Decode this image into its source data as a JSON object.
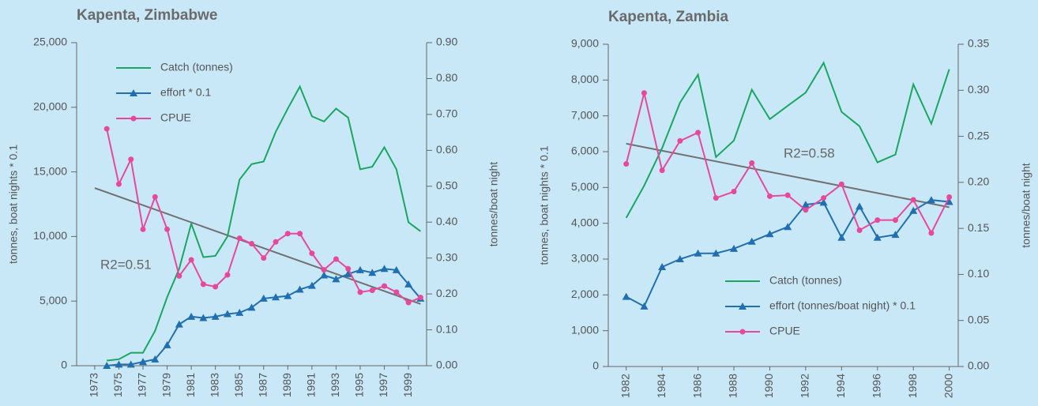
{
  "chart_data": [
    {
      "type": "line",
      "title": "Kapenta, Zimbabwe",
      "y_label": "tonnes, boat nights * 0.1",
      "y2_label": "tonnes/boat night",
      "annotation": "R2=0.51",
      "legend": "upper left",
      "x": [
        1974,
        1975,
        1976,
        1977,
        1978,
        1979,
        1980,
        1981,
        1982,
        1983,
        1984,
        1985,
        1986,
        1987,
        1988,
        1989,
        1990,
        1991,
        1992,
        1993,
        1994,
        1995,
        1996,
        1997,
        1998,
        1999,
        2000
      ],
      "xlim": [
        1971.5,
        2000.5
      ],
      "xticks": [
        1973,
        1975,
        1977,
        1979,
        1981,
        1983,
        1985,
        1987,
        1989,
        1991,
        1993,
        1995,
        1997,
        1999
      ],
      "ylim": [
        0,
        25000
      ],
      "yticks": [
        0,
        {
          "value": 5000,
          "label": "5,000"
        },
        {
          "value": 10000,
          "label": "10,000"
        },
        {
          "value": 15000,
          "label": "15,000"
        },
        {
          "value": 20000,
          "label": "20,000"
        },
        {
          "value": 25000,
          "label": "25,000"
        }
      ],
      "y2lim": [
        0,
        0.9
      ],
      "y2ticks": [
        {
          "value": 0,
          "label": "0.00"
        },
        {
          "value": 0.1,
          "label": "0.10"
        },
        {
          "value": 0.2,
          "label": "0.20"
        },
        {
          "value": 0.3,
          "label": "0.30"
        },
        {
          "value": 0.4,
          "label": "0.40"
        },
        {
          "value": 0.5,
          "label": "0.50"
        },
        {
          "value": 0.6,
          "label": "0.60"
        },
        {
          "value": 0.7,
          "label": "0.70"
        },
        {
          "value": 0.8,
          "label": "0.80"
        },
        {
          "value": 0.9,
          "label": "0.90"
        }
      ],
      "series": [
        {
          "name": "Catch (tonnes)",
          "color": "#1aa661",
          "marker": "none",
          "values": [
            400,
            500,
            1000,
            1000,
            2700,
            5300,
            7500,
            11000,
            8400,
            8500,
            10000,
            14400,
            15600,
            15800,
            18100,
            19900,
            21600,
            19300,
            18900,
            19900,
            19200,
            15200,
            15400,
            16900,
            15200,
            11100,
            10400
          ]
        },
        {
          "name": "effort * 0.1",
          "color": "#1f6fb2",
          "marker": "triangle",
          "values": [
            0,
            100,
            100,
            300,
            500,
            1600,
            3200,
            3800,
            3700,
            3800,
            4000,
            4100,
            4500,
            5200,
            5300,
            5400,
            5900,
            6200,
            7000,
            6700,
            7100,
            7400,
            7200,
            7500,
            7400,
            6300,
            5200
          ]
        },
        {
          "name": "CPUE",
          "color": "#e8489a",
          "marker": "circle",
          "axis": "y2",
          "values": [
            0.66,
            0.506,
            0.575,
            0.38,
            0.47,
            0.38,
            0.25,
            0.295,
            0.227,
            0.22,
            0.253,
            0.355,
            0.34,
            0.3,
            0.345,
            0.368,
            0.368,
            0.313,
            0.267,
            0.297,
            0.27,
            0.205,
            0.21,
            0.222,
            0.205,
            0.176,
            0.19
          ]
        }
      ],
      "trend": {
        "color": "#707070",
        "axis": "y2",
        "x": [
          1973,
          2000
        ],
        "values": [
          0.495,
          0.172
        ]
      }
    },
    {
      "type": "line",
      "title": "Kapenta, Zambia",
      "y_label": "tonnes, boat nights * 0.1",
      "y2_label": "tonnes/boat night",
      "annotation": "R2=0.58",
      "legend": "lower right",
      "x": [
        1982,
        1983,
        1984,
        1985,
        1986,
        1987,
        1988,
        1989,
        1990,
        1991,
        1992,
        1993,
        1994,
        1995,
        1996,
        1997,
        1998,
        1999,
        2000
      ],
      "xlim": [
        1981,
        2000.5
      ],
      "xticks": [
        1982,
        1984,
        1986,
        1988,
        1990,
        1992,
        1994,
        1996,
        1998,
        2000
      ],
      "ylim": [
        0,
        9000
      ],
      "yticks": [
        0,
        {
          "value": 1000,
          "label": "1,000"
        },
        {
          "value": 2000,
          "label": "2,000"
        },
        {
          "value": 3000,
          "label": "3,000"
        },
        {
          "value": 4000,
          "label": "4,000"
        },
        {
          "value": 5000,
          "label": "5,000"
        },
        {
          "value": 6000,
          "label": "6,000"
        },
        {
          "value": 7000,
          "label": "7,000"
        },
        {
          "value": 8000,
          "label": "8,000"
        },
        {
          "value": 9000,
          "label": "9,000"
        }
      ],
      "y2lim": [
        0,
        0.35
      ],
      "y2ticks": [
        {
          "value": 0,
          "label": "0.00"
        },
        {
          "value": 0.05,
          "label": "0.05"
        },
        {
          "value": 0.1,
          "label": "0.10"
        },
        {
          "value": 0.15,
          "label": "0.15"
        },
        {
          "value": 0.2,
          "label": "0.20"
        },
        {
          "value": 0.25,
          "label": "0.25"
        },
        {
          "value": 0.3,
          "label": "0.30"
        },
        {
          "value": 0.35,
          "label": "0.35"
        }
      ],
      "series": [
        {
          "name": "Catch (tonnes)",
          "color": "#1aa661",
          "marker": "none",
          "values": [
            4150,
            5050,
            6100,
            7370,
            8150,
            5850,
            6310,
            7730,
            6910,
            7280,
            7650,
            8480,
            7110,
            6710,
            5700,
            5920,
            7880,
            6780,
            8300
          ]
        },
        {
          "name": "effort (tonnes/boat night) * 0.1",
          "color": "#1f6fb2",
          "marker": "triangle",
          "values": [
            1950,
            1680,
            2780,
            3000,
            3160,
            3160,
            3290,
            3490,
            3700,
            3900,
            4520,
            4580,
            3600,
            4470,
            3600,
            3680,
            4350,
            4650,
            4600
          ]
        },
        {
          "name": "CPUE",
          "color": "#e8489a",
          "marker": "circle",
          "axis": "y2",
          "values": [
            0.22,
            0.297,
            0.213,
            0.245,
            0.254,
            0.183,
            0.19,
            0.221,
            0.185,
            0.186,
            0.17,
            0.183,
            0.198,
            0.148,
            0.159,
            0.159,
            0.181,
            0.145,
            0.184
          ]
        }
      ],
      "trend": {
        "color": "#707070",
        "axis": "y2",
        "x": [
          1982,
          2000
        ],
        "values": [
          0.242,
          0.173
        ]
      }
    }
  ]
}
